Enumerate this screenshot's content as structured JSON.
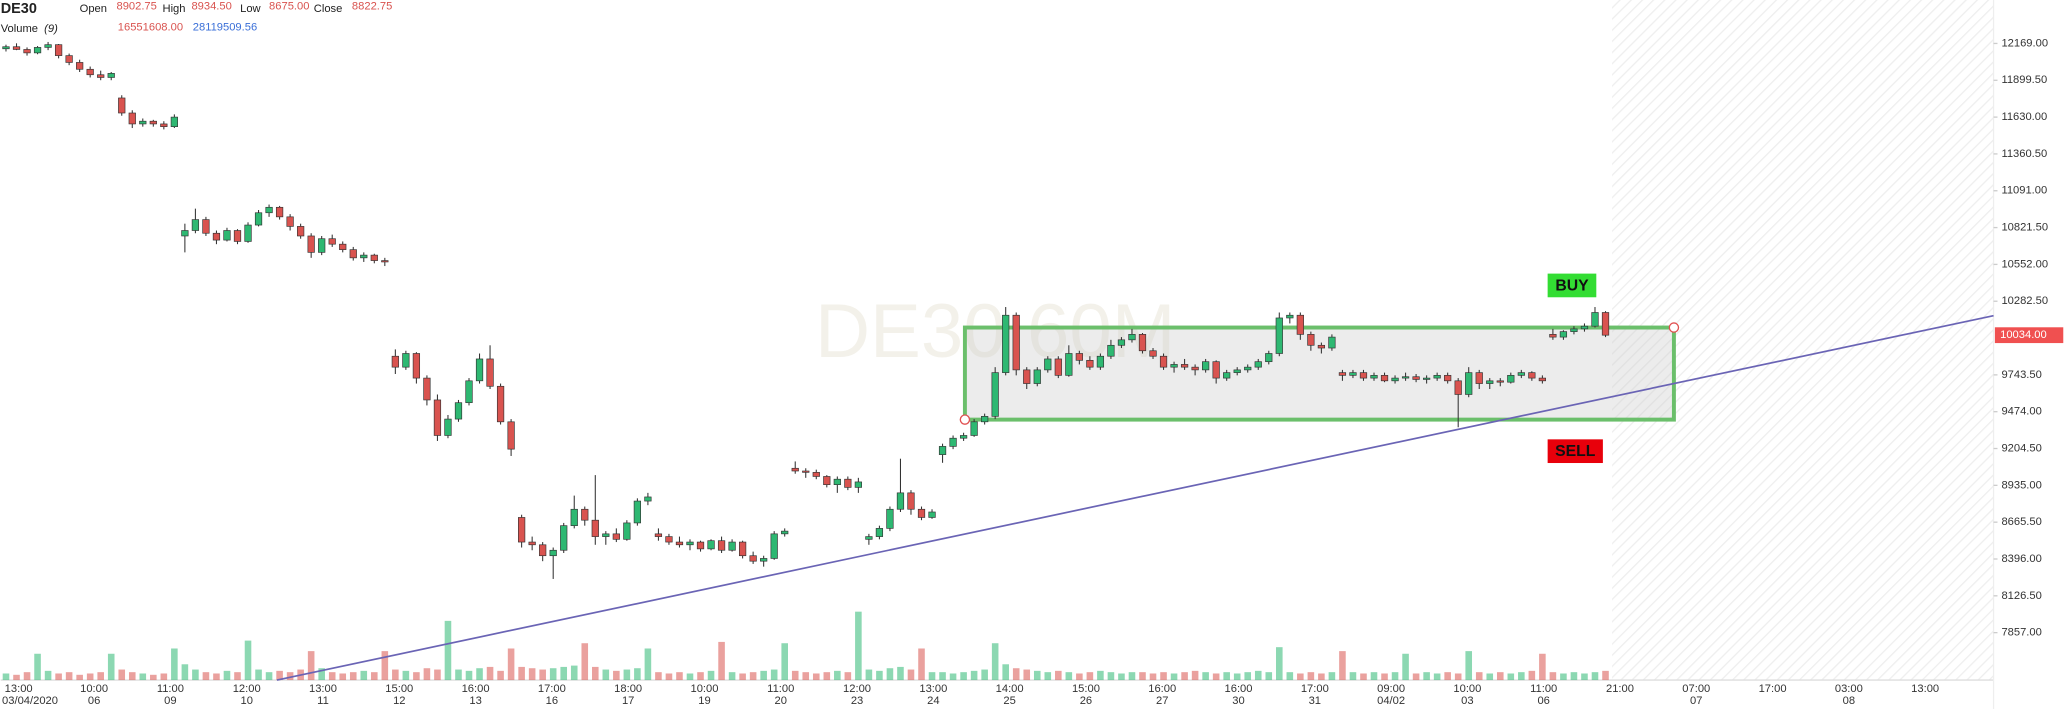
{
  "chart_data": {
    "type": "candlestick",
    "title": "DE30",
    "ohlc_labels": [
      "Open",
      "High",
      "Low",
      "Close"
    ],
    "ohlc_values": [
      "8902.75",
      "8934.50",
      "8675.00",
      "8822.75"
    ],
    "volume_label": "Volume",
    "volume_param": "(9)",
    "volume_values": [
      "16551608.00",
      "28119509.56"
    ],
    "watermark": "DE30,60M",
    "annotations": [
      "BUY",
      "SELL"
    ],
    "last_price": {
      "value": 10034,
      "label": "10034.00"
    },
    "ylim": [
      7510,
      12487
    ],
    "yticks": [
      {
        "value": 12169,
        "label": "12169.00"
      },
      {
        "value": 11899.5,
        "label": "11899.50"
      },
      {
        "value": 11630,
        "label": "11630.00"
      },
      {
        "value": 11360.5,
        "label": "11360.50"
      },
      {
        "value": 11091,
        "label": "11091.00"
      },
      {
        "value": 10821.5,
        "label": "10821.50"
      },
      {
        "value": 10552,
        "label": "10552.00"
      },
      {
        "value": 10282.5,
        "label": "10282.50"
      },
      {
        "value": 9743.5,
        "label": "9743.50"
      },
      {
        "value": 9474,
        "label": "9474.00"
      },
      {
        "value": 9204.5,
        "label": "9204.50"
      },
      {
        "value": 8935,
        "label": "8935.00"
      },
      {
        "value": 8665.5,
        "label": "8665.50"
      },
      {
        "value": 8396,
        "label": "8396.00"
      },
      {
        "value": 8126.5,
        "label": "8126.50"
      },
      {
        "value": 7857,
        "label": "7857.00"
      }
    ],
    "times": [
      "13:00",
      "10:00",
      "11:00",
      "12:00",
      "13:00",
      "15:00",
      "16:00",
      "17:00",
      "18:00",
      "10:00",
      "11:00",
      "12:00",
      "13:00",
      "14:00",
      "15:00",
      "16:00",
      "16:00",
      "17:00",
      "09:00",
      "10:00",
      "11:00",
      "21:00",
      "07:00",
      "17:00",
      "03:00",
      "13:00"
    ],
    "dates": [
      "03/04/2020",
      "06",
      "09",
      "10",
      "11",
      "12",
      "13",
      "16",
      "17",
      "19",
      "20",
      "23",
      "24",
      "25",
      "26",
      "27",
      "30",
      "31",
      "04/02",
      "03",
      "06",
      null,
      "07",
      null,
      "08",
      null
    ],
    "candles": [
      [
        12130,
        12160,
        12110,
        12145
      ],
      [
        12145,
        12170,
        12120,
        12125
      ],
      [
        12125,
        12140,
        12080,
        12100
      ],
      [
        12100,
        12150,
        12090,
        12140
      ],
      [
        12140,
        12180,
        12120,
        12160
      ],
      [
        12160,
        12165,
        12060,
        12080
      ],
      [
        12080,
        12095,
        12010,
        12030
      ],
      [
        12030,
        12050,
        11960,
        11980
      ],
      [
        11980,
        12000,
        11920,
        11940
      ],
      [
        11940,
        11970,
        11900,
        11920
      ],
      [
        11920,
        11960,
        11900,
        11950
      ],
      [
        11770,
        11790,
        11640,
        11660
      ],
      [
        11660,
        11680,
        11550,
        11580
      ],
      [
        11580,
        11620,
        11560,
        11600
      ],
      [
        11600,
        11610,
        11560,
        11580
      ],
      [
        11580,
        11600,
        11540,
        11560
      ],
      [
        11560,
        11650,
        11550,
        11630
      ],
      [
        10760,
        10850,
        10640,
        10800
      ],
      [
        10800,
        10960,
        10780,
        10880
      ],
      [
        10880,
        10900,
        10760,
        10780
      ],
      [
        10780,
        10800,
        10700,
        10730
      ],
      [
        10730,
        10820,
        10720,
        10800
      ],
      [
        10800,
        10810,
        10700,
        10720
      ],
      [
        10720,
        10860,
        10710,
        10840
      ],
      [
        10840,
        10950,
        10830,
        10930
      ],
      [
        10930,
        10990,
        10900,
        10970
      ],
      [
        10970,
        10980,
        10880,
        10900
      ],
      [
        10900,
        10920,
        10800,
        10830
      ],
      [
        10830,
        10850,
        10740,
        10760
      ],
      [
        10760,
        10780,
        10600,
        10640
      ],
      [
        10640,
        10760,
        10620,
        10740
      ],
      [
        10740,
        10770,
        10680,
        10700
      ],
      [
        10700,
        10720,
        10640,
        10660
      ],
      [
        10660,
        10680,
        10580,
        10600
      ],
      [
        10600,
        10640,
        10570,
        10620
      ],
      [
        10620,
        10630,
        10560,
        10580
      ],
      [
        10580,
        10600,
        10540,
        10570
      ],
      [
        9880,
        9930,
        9750,
        9800
      ],
      [
        9800,
        9920,
        9780,
        9900
      ],
      [
        9900,
        9910,
        9680,
        9720
      ],
      [
        9720,
        9740,
        9520,
        9560
      ],
      [
        9560,
        9600,
        9260,
        9300
      ],
      [
        9300,
        9450,
        9280,
        9420
      ],
      [
        9420,
        9560,
        9400,
        9540
      ],
      [
        9540,
        9720,
        9520,
        9700
      ],
      [
        9700,
        9900,
        9680,
        9860
      ],
      [
        9860,
        9960,
        9640,
        9660
      ],
      [
        9660,
        9680,
        9380,
        9400
      ],
      [
        9400,
        9420,
        9150,
        9200
      ],
      [
        8700,
        8720,
        8480,
        8520
      ],
      [
        8520,
        8560,
        8460,
        8500
      ],
      [
        8500,
        8520,
        8380,
        8420
      ],
      [
        8420,
        8480,
        8250,
        8460
      ],
      [
        8460,
        8660,
        8440,
        8640
      ],
      [
        8640,
        8860,
        8620,
        8760
      ],
      [
        8760,
        8780,
        8640,
        8680
      ],
      [
        8680,
        9010,
        8500,
        8560
      ],
      [
        8560,
        8600,
        8500,
        8580
      ],
      [
        8580,
        8620,
        8520,
        8540
      ],
      [
        8540,
        8680,
        8530,
        8660
      ],
      [
        8660,
        8840,
        8640,
        8820
      ],
      [
        8820,
        8880,
        8790,
        8850
      ],
      [
        8580,
        8620,
        8530,
        8560
      ],
      [
        8560,
        8580,
        8500,
        8520
      ],
      [
        8520,
        8560,
        8480,
        8500
      ],
      [
        8500,
        8540,
        8460,
        8520
      ],
      [
        8520,
        8530,
        8450,
        8470
      ],
      [
        8470,
        8540,
        8460,
        8530
      ],
      [
        8530,
        8560,
        8440,
        8460
      ],
      [
        8460,
        8540,
        8450,
        8520
      ],
      [
        8520,
        8530,
        8400,
        8420
      ],
      [
        8420,
        8450,
        8360,
        8380
      ],
      [
        8380,
        8420,
        8340,
        8400
      ],
      [
        8400,
        8600,
        8390,
        8580
      ],
      [
        8580,
        8620,
        8560,
        8600
      ],
      [
        9060,
        9110,
        9020,
        9040
      ],
      [
        9040,
        9060,
        8990,
        9030
      ],
      [
        9030,
        9050,
        8980,
        9000
      ],
      [
        9000,
        9010,
        8920,
        8940
      ],
      [
        8940,
        9000,
        8880,
        8980
      ],
      [
        8980,
        9000,
        8900,
        8920
      ],
      [
        8920,
        8990,
        8880,
        8960
      ],
      [
        8540,
        8580,
        8500,
        8560
      ],
      [
        8560,
        8640,
        8540,
        8620
      ],
      [
        8620,
        8780,
        8600,
        8760
      ],
      [
        8760,
        9130,
        8740,
        8880
      ],
      [
        8880,
        8900,
        8720,
        8760
      ],
      [
        8760,
        8780,
        8680,
        8700
      ],
      [
        8700,
        8760,
        8690,
        8740
      ],
      [
        9160,
        9240,
        9100,
        9220
      ],
      [
        9220,
        9300,
        9200,
        9280
      ],
      [
        9280,
        9320,
        9260,
        9300
      ],
      [
        9300,
        9420,
        9290,
        9400
      ],
      [
        9400,
        9460,
        9380,
        9440
      ],
      [
        9440,
        9800,
        9420,
        9760
      ],
      [
        9760,
        10240,
        9740,
        10180
      ],
      [
        10180,
        10200,
        9740,
        9780
      ],
      [
        9780,
        9800,
        9640,
        9680
      ],
      [
        9680,
        9800,
        9660,
        9780
      ],
      [
        9780,
        9880,
        9760,
        9860
      ],
      [
        9860,
        9880,
        9720,
        9740
      ],
      [
        9740,
        9960,
        9730,
        9900
      ],
      [
        9900,
        9920,
        9820,
        9850
      ],
      [
        9850,
        9880,
        9780,
        9800
      ],
      [
        9800,
        9900,
        9780,
        9880
      ],
      [
        9880,
        10000,
        9860,
        9960
      ],
      [
        9960,
        10020,
        9940,
        10000
      ],
      [
        10000,
        10080,
        9980,
        10040
      ],
      [
        10040,
        10050,
        9900,
        9920
      ],
      [
        9920,
        9940,
        9860,
        9880
      ],
      [
        9880,
        9900,
        9780,
        9800
      ],
      [
        9800,
        9840,
        9760,
        9820
      ],
      [
        9820,
        9860,
        9780,
        9800
      ],
      [
        9800,
        9820,
        9740,
        9780
      ],
      [
        9780,
        9860,
        9760,
        9840
      ],
      [
        9840,
        9850,
        9680,
        9720
      ],
      [
        9720,
        9780,
        9700,
        9760
      ],
      [
        9760,
        9800,
        9740,
        9780
      ],
      [
        9780,
        9820,
        9760,
        9800
      ],
      [
        9800,
        9860,
        9780,
        9840
      ],
      [
        9840,
        9920,
        9820,
        9900
      ],
      [
        9900,
        10200,
        9880,
        10160
      ],
      [
        10160,
        10200,
        10120,
        10180
      ],
      [
        10180,
        10200,
        10000,
        10040
      ],
      [
        10040,
        10060,
        9920,
        9960
      ],
      [
        9960,
        9980,
        9900,
        9940
      ],
      [
        9940,
        10040,
        9920,
        10020
      ],
      [
        9760,
        9780,
        9700,
        9740
      ],
      [
        9740,
        9780,
        9720,
        9760
      ],
      [
        9760,
        9780,
        9700,
        9720
      ],
      [
        9720,
        9760,
        9700,
        9740
      ],
      [
        9740,
        9760,
        9690,
        9700
      ],
      [
        9700,
        9740,
        9680,
        9720
      ],
      [
        9720,
        9760,
        9700,
        9730
      ],
      [
        9730,
        9750,
        9690,
        9710
      ],
      [
        9710,
        9740,
        9680,
        9720
      ],
      [
        9720,
        9760,
        9700,
        9740
      ],
      [
        9740,
        9760,
        9680,
        9700
      ],
      [
        9700,
        9720,
        9360,
        9600
      ],
      [
        9600,
        9800,
        9580,
        9760
      ],
      [
        9760,
        9780,
        9640,
        9680
      ],
      [
        9680,
        9720,
        9640,
        9700
      ],
      [
        9700,
        9720,
        9660,
        9690
      ],
      [
        9690,
        9760,
        9680,
        9740
      ],
      [
        9740,
        9780,
        9720,
        9760
      ],
      [
        9760,
        9770,
        9700,
        9720
      ],
      [
        9720,
        9740,
        9680,
        9700
      ],
      [
        10040,
        10080,
        10000,
        10020
      ],
      [
        10020,
        10070,
        10000,
        10060
      ],
      [
        10060,
        10100,
        10040,
        10080
      ],
      [
        10080,
        10120,
        10060,
        10100
      ],
      [
        10100,
        10240,
        10090,
        10200
      ],
      [
        10200,
        10210,
        10020,
        10034
      ]
    ],
    "volumes": [
      25,
      20,
      30,
      100,
      35,
      25,
      30,
      20,
      25,
      30,
      100,
      40,
      30,
      25,
      20,
      25,
      120,
      60,
      40,
      30,
      25,
      35,
      30,
      150,
      40,
      30,
      35,
      30,
      40,
      110,
      45,
      30,
      25,
      30,
      35,
      30,
      110,
      40,
      35,
      30,
      45,
      40,
      225,
      40,
      35,
      45,
      50,
      35,
      120,
      50,
      45,
      40,
      45,
      50,
      55,
      140,
      50,
      40,
      35,
      40,
      45,
      120,
      30,
      25,
      30,
      25,
      30,
      35,
      145,
      30,
      25,
      30,
      35,
      40,
      140,
      35,
      30,
      25,
      30,
      35,
      30,
      260,
      40,
      35,
      45,
      50,
      40,
      120,
      30,
      30,
      25,
      30,
      35,
      40,
      140,
      60,
      45,
      40,
      35,
      30,
      35,
      30,
      25,
      30,
      35,
      30,
      25,
      30,
      30,
      25,
      30,
      25,
      30,
      35,
      30,
      25,
      30,
      25,
      30,
      35,
      30,
      125,
      30,
      25,
      30,
      25,
      30,
      110,
      30,
      25,
      30,
      25,
      30,
      100,
      25,
      30,
      25,
      30,
      25,
      110,
      30,
      25,
      30,
      25,
      30,
      35,
      100,
      30,
      25,
      30,
      25,
      30,
      35
    ],
    "volume_ylim": [
      0,
      300
    ],
    "up_color": "#2eb872",
    "down_color": "#d9534f"
  }
}
